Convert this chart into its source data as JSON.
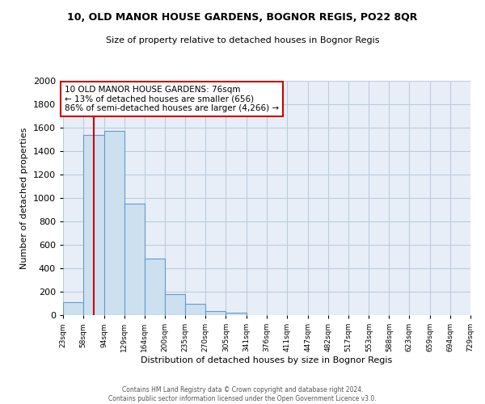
{
  "title1": "10, OLD MANOR HOUSE GARDENS, BOGNOR REGIS, PO22 8QR",
  "title2": "Size of property relative to detached houses in Bognor Regis",
  "xlabel": "Distribution of detached houses by size in Bognor Regis",
  "ylabel": "Number of detached properties",
  "bar_values": [
    110,
    1540,
    1570,
    950,
    485,
    180,
    100,
    35,
    20,
    0,
    0,
    0,
    0,
    0,
    0,
    0,
    0,
    0,
    0,
    0
  ],
  "bin_labels": [
    "23sqm",
    "58sqm",
    "94sqm",
    "129sqm",
    "164sqm",
    "200sqm",
    "235sqm",
    "270sqm",
    "305sqm",
    "341sqm",
    "376sqm",
    "411sqm",
    "447sqm",
    "482sqm",
    "517sqm",
    "553sqm",
    "588sqm",
    "623sqm",
    "659sqm",
    "694sqm",
    "729sqm"
  ],
  "bar_color": "#cce0f0",
  "bar_edge_color": "#6699cc",
  "vline_color": "#cc0000",
  "annotation_text": "10 OLD MANOR HOUSE GARDENS: 76sqm\n← 13% of detached houses are smaller (656)\n86% of semi-detached houses are larger (4,266) →",
  "annotation_box_color": "#ffffff",
  "annotation_box_edge_color": "#cc0000",
  "ylim": [
    0,
    2000
  ],
  "yticks": [
    0,
    200,
    400,
    600,
    800,
    1000,
    1200,
    1400,
    1600,
    1800,
    2000
  ],
  "grid_color": "#bbccdd",
  "bg_color": "#e8eef8",
  "footer_text": "Contains HM Land Registry data © Crown copyright and database right 2024.\nContains public sector information licensed under the Open Government Licence v3.0.",
  "bin_edges": [
    23,
    58,
    94,
    129,
    164,
    200,
    235,
    270,
    305,
    341,
    376,
    411,
    447,
    482,
    517,
    553,
    588,
    623,
    659,
    694,
    729
  ]
}
